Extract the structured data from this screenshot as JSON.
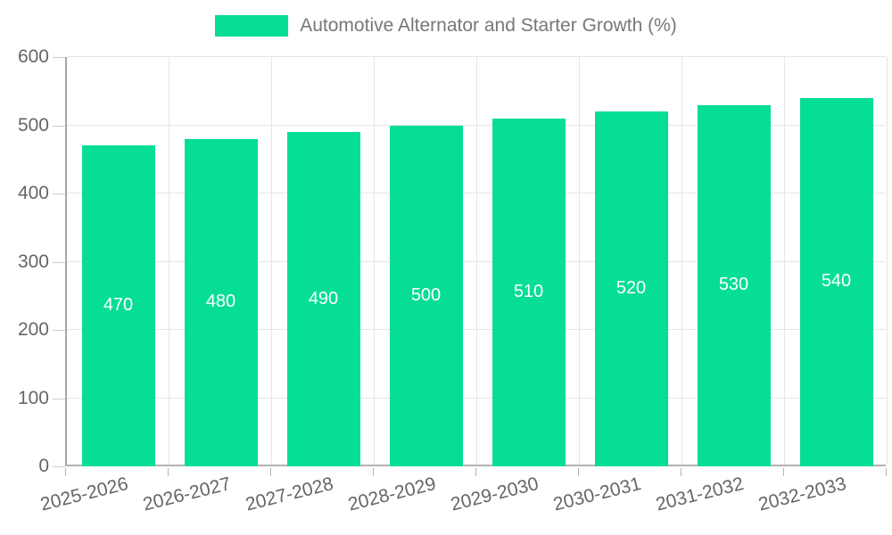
{
  "legend": {
    "label": "Automotive Alternator and Starter Growth (%)"
  },
  "colors": {
    "bar": "#06de95",
    "grid": "#e6e6e6",
    "axis": "#b3b3b3",
    "tick": "#cccccc",
    "axis_label_text": "#666666",
    "legend_text": "#777777",
    "value_label_text": "#ffffff",
    "background": "#ffffff"
  },
  "chart_data": {
    "type": "bar",
    "title": "Automotive Alternator and Starter Growth (%)",
    "categories": [
      "2025-2026",
      "2026-2027",
      "2027-2028",
      "2028-2029",
      "2029-2030",
      "2030-2031",
      "2031-2032",
      "2032-2033"
    ],
    "values": [
      470,
      480,
      490,
      500,
      510,
      520,
      530,
      540
    ],
    "value_labels": [
      "470",
      "480",
      "490",
      "500",
      "510",
      "520",
      "530",
      "540"
    ],
    "xlabel": "",
    "ylabel": "",
    "ylim": [
      0,
      600
    ],
    "yticks": [
      0,
      100,
      200,
      300,
      400,
      500,
      600
    ],
    "ytick_labels": [
      "0",
      "100",
      "200",
      "300",
      "400",
      "500",
      "600"
    ],
    "grid": true,
    "legend_position": "top",
    "bar_labels_visible": true
  }
}
